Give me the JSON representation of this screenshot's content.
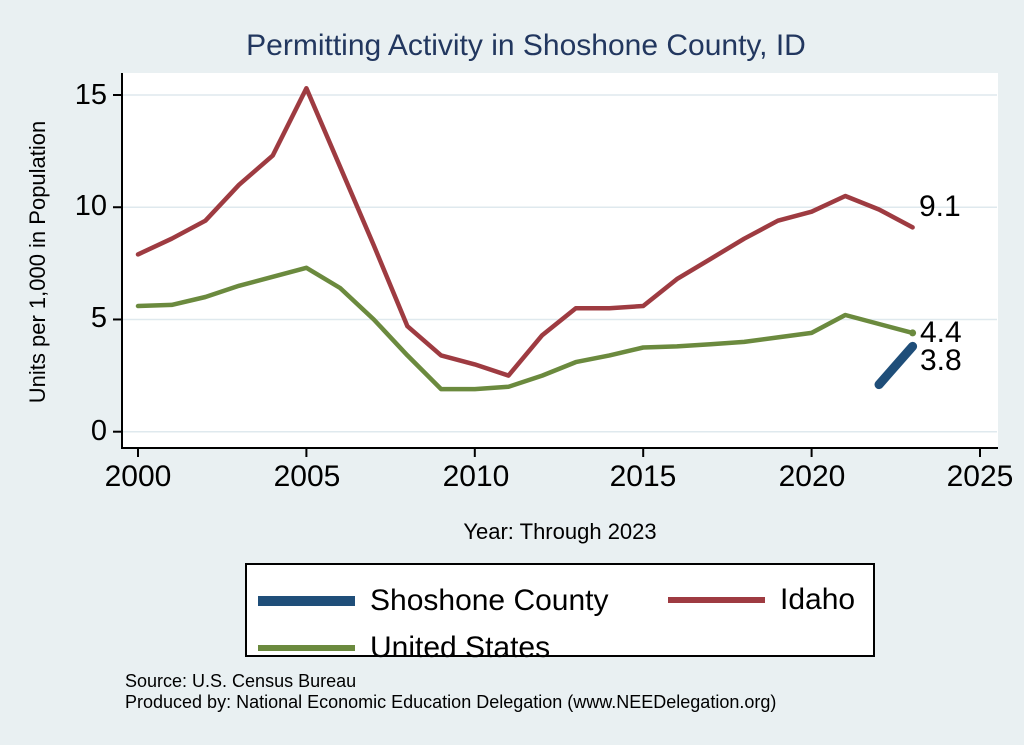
{
  "page": {
    "background_color": "#e9f0f2",
    "plot_background_color": "#ffffff"
  },
  "chart_data": {
    "type": "line",
    "title": "Permitting Activity in Shoshone County, ID",
    "title_color": "#22375f",
    "xlabel": "Year: Through 2023",
    "ylabel": "Units per 1,000 in Population",
    "xlim": [
      2000,
      2025
    ],
    "ylim": [
      0,
      15
    ],
    "x_ticks": [
      2000,
      2005,
      2010,
      2015,
      2020,
      2025
    ],
    "x_tick_labels": [
      "2000",
      "2005",
      "2010",
      "2015",
      "2020",
      "2025"
    ],
    "y_ticks": [
      15,
      10,
      5,
      0
    ],
    "y_tick_labels": [
      "15",
      "10",
      "5",
      "0"
    ],
    "grid": "horizontal gridlines on, color #dfe9ee",
    "legend_position": "below plot, boxed, two rows",
    "years": [
      2000,
      2001,
      2002,
      2003,
      2004,
      2005,
      2006,
      2007,
      2008,
      2009,
      2010,
      2011,
      2012,
      2013,
      2014,
      2015,
      2016,
      2017,
      2018,
      2019,
      2020,
      2021,
      2022,
      2023
    ],
    "series": [
      {
        "name": "Shoshone County",
        "color": "#1f4e79",
        "line_width": 9,
        "years": [
          2022,
          2023
        ],
        "values": [
          2.1,
          3.8
        ],
        "end_label": "3.8",
        "end_marker": false
      },
      {
        "name": "Idaho",
        "color": "#9e3b41",
        "line_width": 4.5,
        "values": [
          7.9,
          8.6,
          9.4,
          11.0,
          12.3,
          15.3,
          11.8,
          8.3,
          4.7,
          3.4,
          3.0,
          2.5,
          4.3,
          5.5,
          5.5,
          5.6,
          6.8,
          7.7,
          8.6,
          9.4,
          9.8,
          10.5,
          9.9,
          9.1
        ],
        "end_label": "9.1",
        "end_marker": false
      },
      {
        "name": "United States",
        "color": "#6b8a3e",
        "line_width": 4.5,
        "values": [
          5.6,
          5.65,
          6.0,
          6.5,
          6.9,
          7.3,
          6.4,
          5.0,
          3.4,
          1.9,
          1.9,
          2.0,
          2.5,
          3.1,
          3.4,
          3.75,
          3.8,
          3.9,
          4.0,
          4.2,
          4.4,
          5.2,
          4.8,
          4.4
        ],
        "end_label": "4.4",
        "end_marker": true
      }
    ]
  },
  "footer": {
    "source": "Source: U.S. Census Bureau",
    "produced_by": "Produced by: National Economic Education Delegation (www.NEEDelegation.org)"
  }
}
